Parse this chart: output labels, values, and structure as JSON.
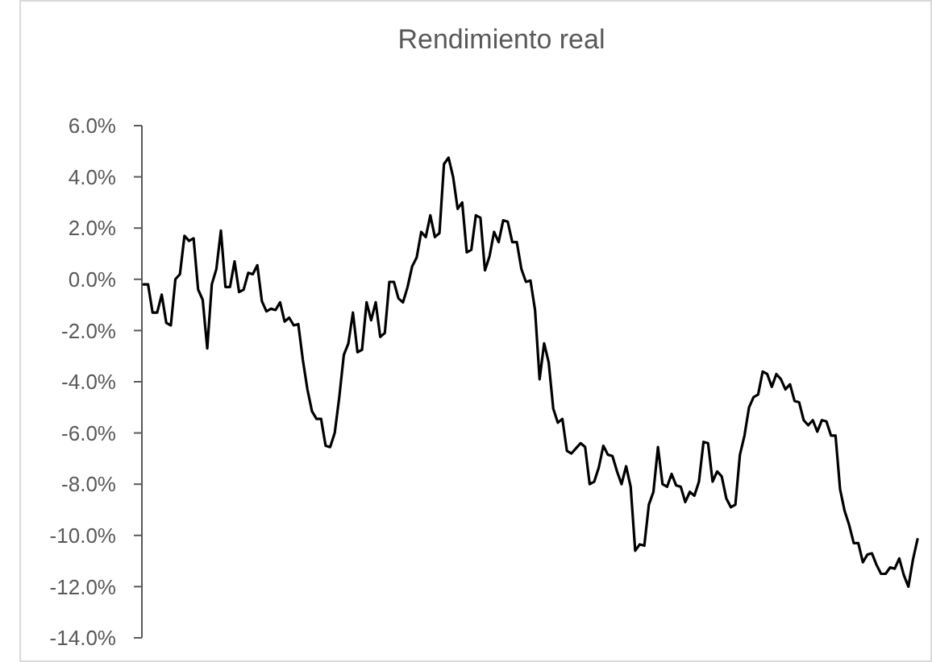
{
  "chart_data": {
    "type": "line",
    "title": "Rendimiento real",
    "categories": [
      null,
      null,
      null,
      null,
      null,
      null,
      null,
      null,
      null,
      null,
      null,
      null,
      null,
      null,
      null,
      null,
      null,
      null,
      null,
      null,
      null,
      null,
      null,
      null,
      null,
      null,
      null,
      null,
      null,
      null,
      null,
      null,
      null,
      null,
      null,
      null,
      null,
      null,
      null,
      null,
      null,
      null,
      null,
      null,
      null,
      null,
      null,
      null,
      null,
      null,
      null,
      null,
      null,
      null,
      null,
      null,
      null,
      null,
      null,
      null,
      null,
      null,
      null,
      null,
      null,
      null,
      null,
      null,
      null,
      null,
      null,
      null,
      null,
      null,
      null,
      null,
      null,
      null,
      null,
      null,
      null,
      null,
      null,
      null,
      null,
      null,
      null,
      null,
      null,
      null,
      null,
      null,
      null,
      null,
      null,
      null,
      null,
      null,
      null,
      null,
      null,
      null,
      null,
      null,
      null,
      null,
      null,
      null,
      null,
      null,
      null,
      null,
      null,
      null,
      null,
      null,
      null,
      null,
      null,
      null,
      null,
      null,
      null,
      null,
      null,
      null,
      null,
      null,
      null,
      null,
      null,
      null,
      null,
      null,
      null,
      null,
      null,
      null,
      null,
      null,
      null,
      null,
      null,
      null,
      null,
      null,
      null,
      null,
      null,
      null,
      null,
      null,
      null,
      null,
      null,
      null,
      null,
      null,
      null,
      null,
      null,
      null,
      null,
      null,
      null,
      null,
      null,
      null,
      null,
      null,
      null
    ],
    "series": [
      {
        "color": "#000000",
        "values": [
          -0.2,
          -0.2,
          -1.3,
          -1.3,
          -0.6,
          -1.7,
          -1.8,
          0,
          0.2,
          1.7,
          1.5,
          1.6,
          -0.4,
          -0.8,
          -2.7,
          -0.2,
          0.4,
          1.9,
          -0.3,
          -0.3,
          0.7,
          -0.5,
          -0.4,
          0.25,
          0.2,
          0.55,
          -0.85,
          -1.25,
          -1.15,
          -1.2,
          -0.9,
          -1.65,
          -1.5,
          -1.8,
          -1.75,
          -3.15,
          -4.3,
          -5.15,
          -5.45,
          -5.45,
          -6.5,
          -6.55,
          -6.0,
          -4.6,
          -2.95,
          -2.5,
          -1.3,
          -2.85,
          -2.75,
          -0.9,
          -1.6,
          -0.9,
          -2.25,
          -2.1,
          -0.1,
          -0.1,
          -0.75,
          -0.9,
          -0.3,
          0.5,
          0.85,
          1.85,
          1.65,
          2.5,
          1.65,
          1.8,
          4.5,
          4.75,
          4.0,
          2.75,
          3.0,
          1.05,
          1.15,
          2.5,
          2.4,
          0.35,
          0.9,
          1.85,
          1.45,
          2.3,
          2.25,
          1.45,
          1.45,
          0.4,
          -0.1,
          -0.05,
          -1.2,
          -3.9,
          -2.5,
          -3.25,
          -5.05,
          -5.6,
          -5.45,
          -6.7,
          -6.8,
          -6.6,
          -6.4,
          -6.55,
          -8.0,
          -7.9,
          -7.35,
          -6.5,
          -6.85,
          -6.9,
          -7.5,
          -8.0,
          -7.3,
          -8.1,
          -10.6,
          -10.35,
          -10.4,
          -8.8,
          -8.3,
          -6.55,
          -8.0,
          -8.1,
          -7.6,
          -8.05,
          -8.1,
          -8.7,
          -8.3,
          -8.45,
          -7.9,
          -6.35,
          -6.4,
          -7.9,
          -7.5,
          -7.7,
          -8.55,
          -8.9,
          -8.8,
          -6.85,
          -6.1,
          -5.0,
          -4.6,
          -4.5,
          -3.6,
          -3.7,
          -4.2,
          -3.7,
          -3.9,
          -4.3,
          -4.1,
          -4.75,
          -4.8,
          -5.5,
          -5.7,
          -5.5,
          -5.95,
          -5.5,
          -5.55,
          -6.1,
          -6.1,
          -8.2,
          -9.05,
          -9.6,
          -10.3,
          -10.3,
          -11.05,
          -10.75,
          -10.7,
          -11.15,
          -11.5,
          -11.5,
          -11.25,
          -11.3,
          -10.9,
          -11.55,
          -12.0,
          -10.95,
          -10.15
        ]
      }
    ],
    "ylim": [
      -14,
      6
    ],
    "yticks": [
      {
        "value": -14,
        "label": "-14.0%"
      },
      {
        "value": -12,
        "label": "-12.0%"
      },
      {
        "value": -10,
        "label": "-10.0%"
      },
      {
        "value": -8,
        "label": "-8.0%"
      },
      {
        "value": -6,
        "label": "-6.0%"
      },
      {
        "value": -4,
        "label": "-4.0%"
      },
      {
        "value": -2,
        "label": "-2.0%"
      },
      {
        "value": 0,
        "label": "0.0%"
      },
      {
        "value": 2,
        "label": "2.0%"
      },
      {
        "value": 4,
        "label": "4.0%"
      },
      {
        "value": 6,
        "label": "6.0%"
      }
    ],
    "tick_labels": "y",
    "grid": false,
    "marker": "none",
    "line_style": "solid"
  }
}
